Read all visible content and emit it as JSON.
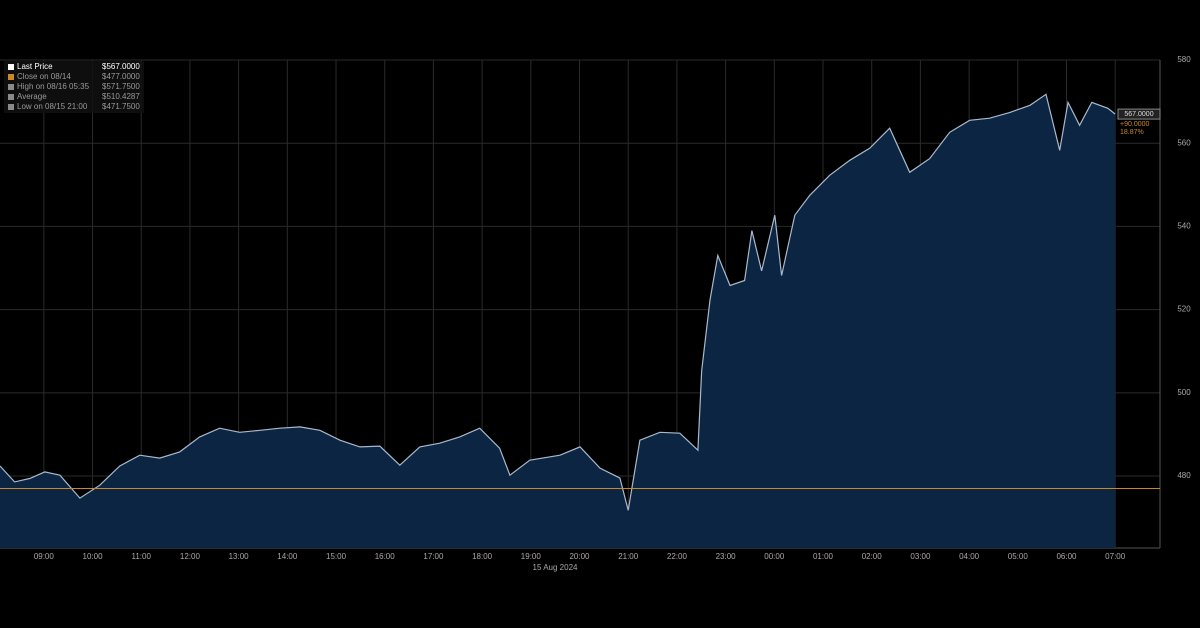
{
  "chart_data": {
    "type": "area",
    "legend": [
      {
        "label": "Last Price",
        "value": "$567.0000"
      },
      {
        "label": "Close on 08/14",
        "value": "$477.0000"
      },
      {
        "label": "High on 08/16 05:35",
        "value": "$571.7500"
      },
      {
        "label": "Average",
        "value": "$510.4287"
      },
      {
        "label": "Low on 08/15 21:00",
        "value": "$471.7500"
      }
    ],
    "legend_colors": [
      "#ffffff",
      "#c8892a",
      "#8a8a8a",
      "#8a8a8a",
      "#8a8a8a"
    ],
    "date_label": "15 Aug 2024",
    "last_label": "567.0000",
    "change_label": "+90.0000",
    "change_pct_label": "18.87%",
    "reference_line": 477,
    "reference_color": "#c8892a",
    "series": [
      {
        "name": "Last Price",
        "color": "#a9b9cc",
        "fill": "#0b2542",
        "x": [
          8.1,
          8.4,
          8.71,
          9.02,
          9.33,
          9.74,
          10.15,
          10.56,
          10.97,
          11.38,
          11.79,
          12.2,
          12.61,
          13.02,
          13.44,
          13.85,
          14.26,
          14.67,
          15.08,
          15.49,
          15.9,
          16.31,
          16.72,
          17.13,
          17.54,
          17.95,
          18.36,
          18.57,
          18.98,
          19.6,
          20.01,
          20.42,
          20.83,
          21.0,
          21.24,
          21.65,
          22.06,
          22.43,
          22.51,
          22.68,
          22.84,
          23.09,
          23.39,
          23.54,
          23.74,
          24.01,
          24.15,
          24.42,
          24.73,
          25.14,
          25.55,
          25.96,
          26.37,
          26.78,
          27.19,
          27.6,
          28.01,
          28.42,
          28.84,
          29.25,
          29.58,
          29.86,
          30.03,
          30.27,
          30.52,
          30.85,
          31.0
        ],
        "values": [
          482.4,
          478.6,
          479.4,
          481.0,
          480.2,
          474.7,
          477.8,
          482.4,
          485.0,
          484.3,
          485.8,
          489.4,
          491.5,
          490.5,
          491.0,
          491.5,
          491.8,
          491.0,
          488.6,
          487.0,
          487.2,
          482.6,
          487.0,
          487.9,
          489.4,
          491.5,
          486.7,
          480.2,
          483.8,
          485.0,
          487.0,
          481.9,
          479.5,
          471.75,
          488.6,
          490.5,
          490.3,
          486.2,
          505.4,
          522.3,
          533.0,
          525.8,
          527.0,
          539.0,
          529.3,
          542.7,
          528.2,
          542.7,
          547.5,
          552.3,
          555.9,
          558.8,
          563.6,
          553.0,
          556.3,
          562.6,
          565.5,
          566.0,
          567.4,
          569.1,
          571.75,
          558.3,
          569.8,
          564.3,
          569.8,
          568.4,
          567.0
        ]
      }
    ],
    "xlim": [
      8.1,
      31.92
    ],
    "xticks": [
      {
        "value": 9,
        "label": "09:00"
      },
      {
        "value": 10,
        "label": "10:00"
      },
      {
        "value": 11,
        "label": "11:00"
      },
      {
        "value": 12,
        "label": "12:00"
      },
      {
        "value": 13,
        "label": "13:00"
      },
      {
        "value": 14,
        "label": "14:00"
      },
      {
        "value": 15,
        "label": "15:00"
      },
      {
        "value": 16,
        "label": "16:00"
      },
      {
        "value": 17,
        "label": "17:00"
      },
      {
        "value": 18,
        "label": "18:00"
      },
      {
        "value": 19,
        "label": "19:00"
      },
      {
        "value": 20,
        "label": "20:00"
      },
      {
        "value": 21,
        "label": "21:00"
      },
      {
        "value": 22,
        "label": "22:00"
      },
      {
        "value": 23,
        "label": "23:00"
      },
      {
        "value": 24,
        "label": "00:00"
      },
      {
        "value": 25,
        "label": "01:00"
      },
      {
        "value": 26,
        "label": "02:00"
      },
      {
        "value": 27,
        "label": "03:00"
      },
      {
        "value": 28,
        "label": "04:00"
      },
      {
        "value": 29,
        "label": "05:00"
      },
      {
        "value": 30,
        "label": "06:00"
      },
      {
        "value": 31,
        "label": "07:00"
      }
    ],
    "ylim": [
      462.7,
      580
    ],
    "yticks": [
      480,
      500,
      520,
      540,
      560,
      580
    ],
    "grid": true
  }
}
